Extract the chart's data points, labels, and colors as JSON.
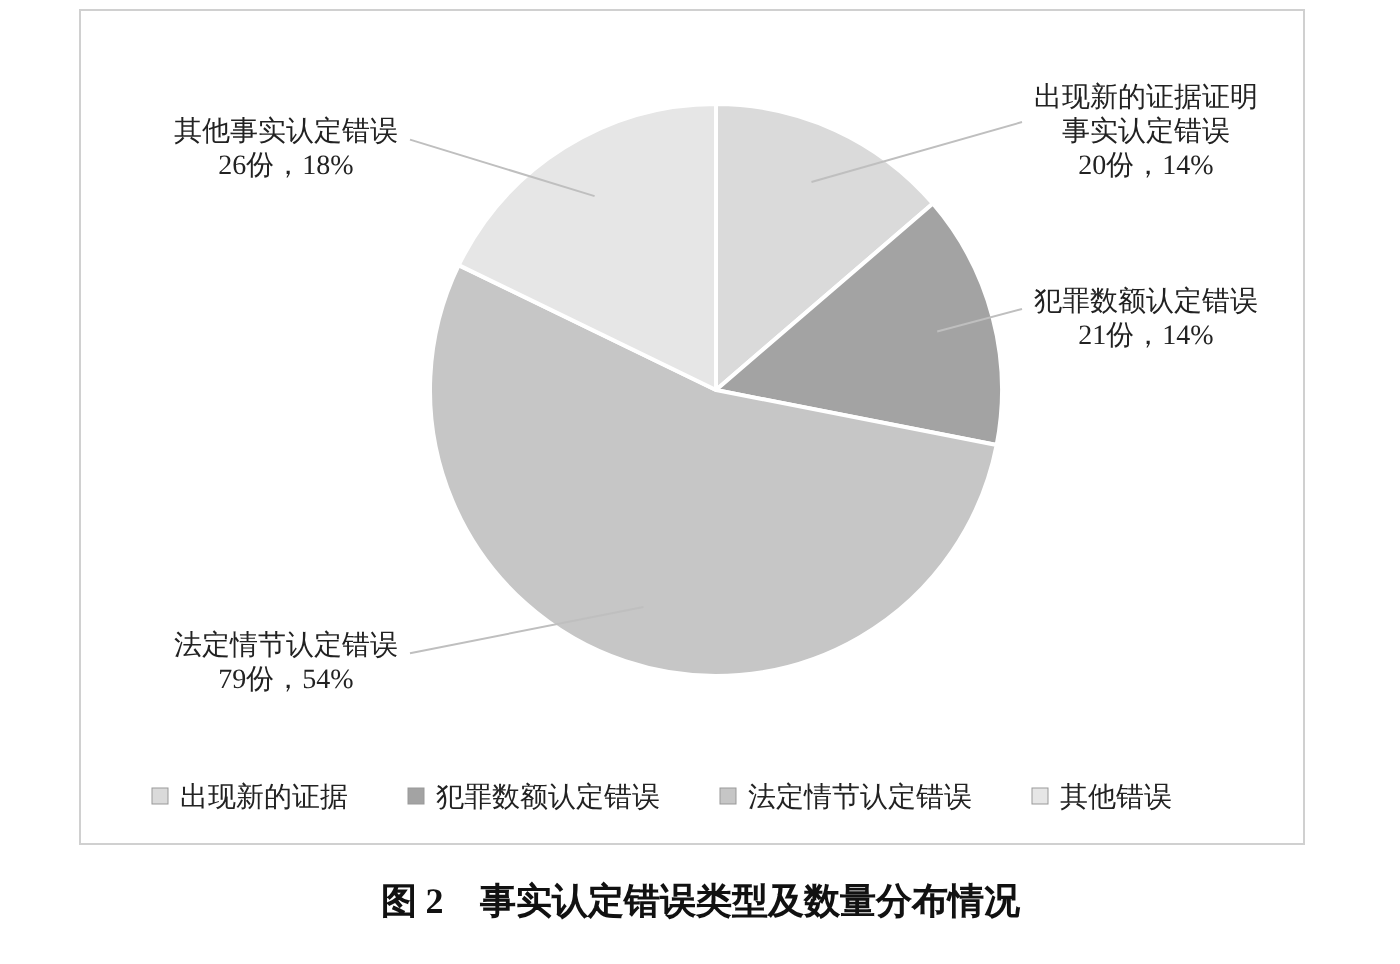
{
  "chart_data": {
    "type": "pie",
    "title": "图 2　事实认定错误类型及数量分布情况",
    "categories": [
      "出现新的证据",
      "犯罪数额认定错误",
      "法定情节认定错误",
      "其他错误"
    ],
    "values": [
      20,
      21,
      79,
      26
    ],
    "colors": [
      "#dadada",
      "#a3a3a3",
      "#c6c6c6",
      "#e6e6e6"
    ],
    "value_labels": [
      "出现新的证据证明事实认定错误\n20份，14%",
      "犯罪数额认定错误\n21份，14%",
      "法定情节认定错误\n79份，54%",
      "其他事实认定错误\n26份，18%"
    ],
    "legend": "bottom"
  }
}
